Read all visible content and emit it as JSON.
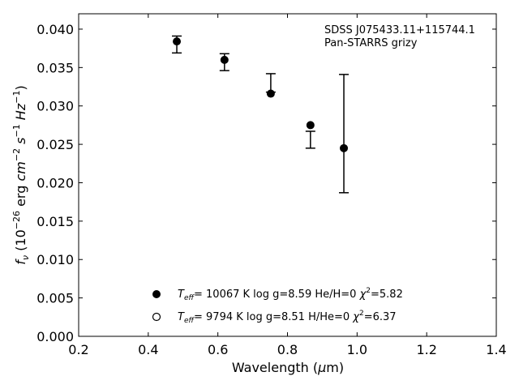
{
  "chart_data": {
    "type": "scatter",
    "annotation_lines": [
      "SDSS J075433.11+115744.1",
      "Pan-STARRS grizy"
    ],
    "xlabel_text": "Wavelength (",
    "xlabel_mu": "μ",
    "xlabel_unit": "m)",
    "ylabel": {
      "f": "f",
      "nu": "ν",
      "open": " (10",
      "exp1": "−26",
      "erg": " erg ",
      "cm": "cm",
      "exp2": "−2",
      "s": " s",
      "exp3": "−1",
      "hz": " Hz",
      "exp4": "−1",
      "close": ")"
    },
    "xlim": [
      0.2,
      1.4
    ],
    "ylim": [
      0.0,
      0.042
    ],
    "xticks": [
      0.2,
      0.4,
      0.6,
      0.8,
      1.0,
      1.2,
      1.4
    ],
    "xtick_labels": [
      "0.2",
      "0.4",
      "0.6",
      "0.8",
      "1.0",
      "1.2",
      "1.4"
    ],
    "yticks": [
      0.0,
      0.005,
      0.01,
      0.015,
      0.02,
      0.025,
      0.03,
      0.035,
      0.04
    ],
    "ytick_labels": [
      "0.000",
      "0.005",
      "0.010",
      "0.015",
      "0.020",
      "0.025",
      "0.030",
      "0.035",
      "0.040"
    ],
    "observed": {
      "x": [
        0.482,
        0.619,
        0.752,
        0.866,
        0.962
      ],
      "y": [
        0.038,
        0.0357,
        0.033,
        0.0256,
        0.0264
      ],
      "yerr": [
        0.0011,
        0.0011,
        0.0012,
        0.0011,
        0.0077
      ]
    },
    "model_filled": {
      "x": [
        0.482,
        0.619,
        0.752,
        0.866,
        0.962
      ],
      "y": [
        0.0384,
        0.036,
        0.0316,
        0.0275,
        0.0245
      ]
    },
    "legend": [
      {
        "marker": "filled",
        "T": "T",
        "eff": "eff",
        "rest": "= 10067 K  log g=8.59  He/H=0  ",
        "chi": "χ",
        "two": "2",
        "chival": "=5.82"
      },
      {
        "marker": "open",
        "T": "T",
        "eff": "eff",
        "rest": "=  9794 K  log g=8.51  H/He=0  ",
        "chi": "χ",
        "two": "2",
        "chival": "=6.37"
      }
    ]
  }
}
